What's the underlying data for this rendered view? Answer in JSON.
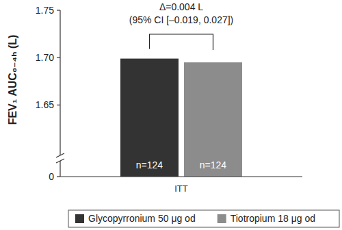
{
  "chart_data": {
    "type": "bar",
    "y_label": "FEV₁ AUC₀₋₄ₕ (L)",
    "categories": [
      "ITT"
    ],
    "series": [
      {
        "name": "Glycopyrronium 50 μg od",
        "color": "#333333",
        "values": [
          1.699
        ],
        "labels": [
          "n=124"
        ]
      },
      {
        "name": "Tiotropium 18 μg od",
        "color": "#8c8c8c",
        "values": [
          1.695
        ],
        "labels": [
          "n=124"
        ]
      }
    ],
    "annotation": [
      "Δ=0.004 L",
      "(95% CI [–0.019, 0.027])"
    ],
    "ylim": [
      0,
      1.75
    ],
    "y_break": [
      0,
      1.625
    ],
    "yticks": [
      0,
      1.65,
      {
        "value": 1.7,
        "label": "1.70"
      },
      1.75
    ],
    "grid": false,
    "legend": "bottom"
  }
}
